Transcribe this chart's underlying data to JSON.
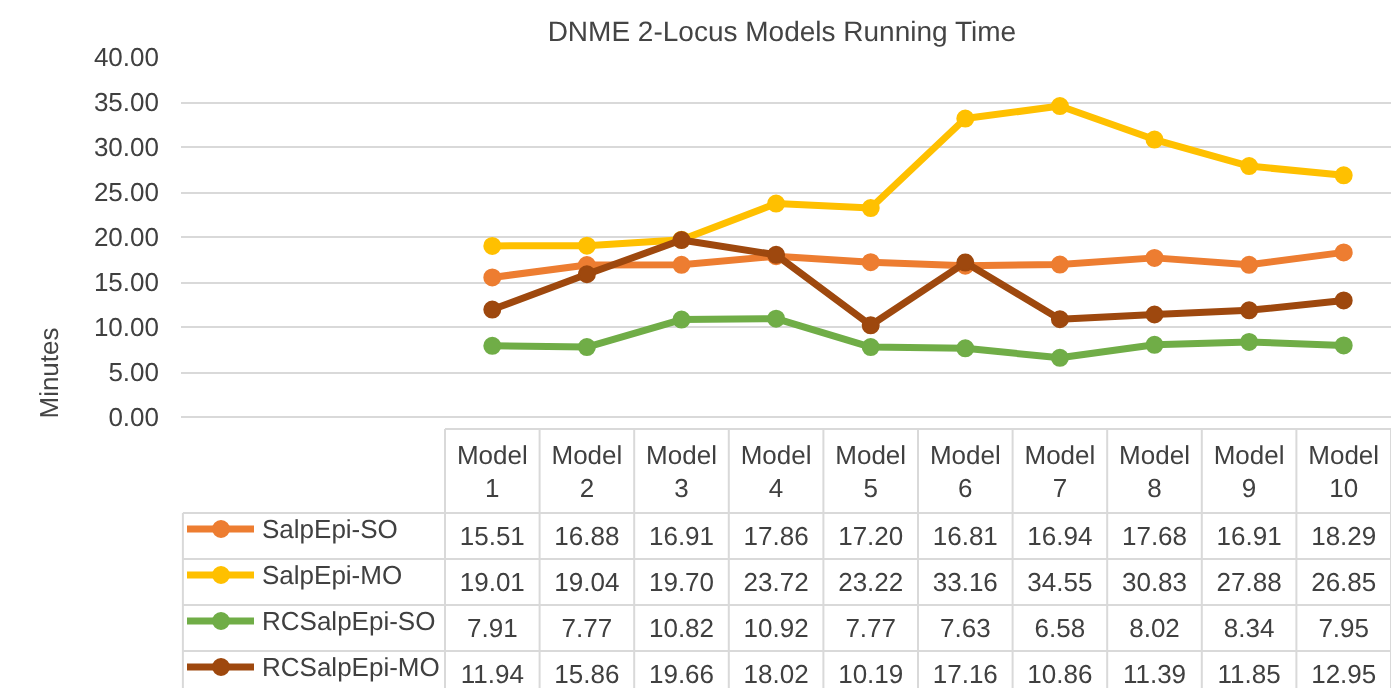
{
  "chart_data": {
    "type": "line",
    "title": "DNME 2-Locus Models  Running Time",
    "ylabel": "Minutes",
    "categories": [
      "Model 1",
      "Model 2",
      "Model 3",
      "Model 4",
      "Model 5",
      "Model 6",
      "Model 7",
      "Model 8",
      "Model 9",
      "Model 10"
    ],
    "series": [
      {
        "name": "SalpEpi-SO",
        "color": "#ed7d31",
        "values": [
          15.51,
          16.88,
          16.91,
          17.86,
          17.2,
          16.81,
          16.94,
          17.68,
          16.91,
          18.29
        ],
        "value_labels": [
          "15.51",
          "16.88",
          "16.91",
          "17.86",
          "17.20",
          "16.81",
          "16.94",
          "17.68",
          "16.91",
          "18.29"
        ]
      },
      {
        "name": "SalpEpi-MO",
        "color": "#ffc000",
        "values": [
          19.01,
          19.04,
          19.7,
          23.72,
          23.22,
          33.16,
          34.55,
          30.83,
          27.88,
          26.85
        ],
        "value_labels": [
          "19.01",
          "19.04",
          "19.70",
          "23.72",
          "23.22",
          "33.16",
          "34.55",
          "30.83",
          "27.88",
          "26.85"
        ]
      },
      {
        "name": "RCSalpEpi-SO",
        "color": "#70ad47",
        "values": [
          7.91,
          7.77,
          10.82,
          10.92,
          7.77,
          7.63,
          6.58,
          8.02,
          8.34,
          7.95
        ]
      },
      {
        "name": "RCSalpEpi-MO",
        "color": "#9e480e",
        "values": [
          11.94,
          15.86,
          19.66,
          18.02,
          10.19,
          17.16,
          10.86,
          11.39,
          11.85,
          12.95
        ]
      }
    ],
    "ylim": [
      0,
      40
    ],
    "yticks": [
      {
        "value": 0,
        "label": "0.00"
      },
      {
        "value": 5,
        "label": "5.00"
      },
      {
        "value": 10,
        "label": "10.00"
      },
      {
        "value": 15,
        "label": "15.00"
      },
      {
        "value": 20,
        "label": "20.00"
      },
      {
        "value": 25,
        "label": "25.00"
      },
      {
        "value": 30,
        "label": "30.00"
      },
      {
        "value": 35,
        "label": "35.00"
      },
      {
        "value": 40,
        "label": "40.00"
      }
    ],
    "grid": "y",
    "legend": "bottom",
    "marker": "circle",
    "line_style": "solid",
    "data_labels": true
  }
}
